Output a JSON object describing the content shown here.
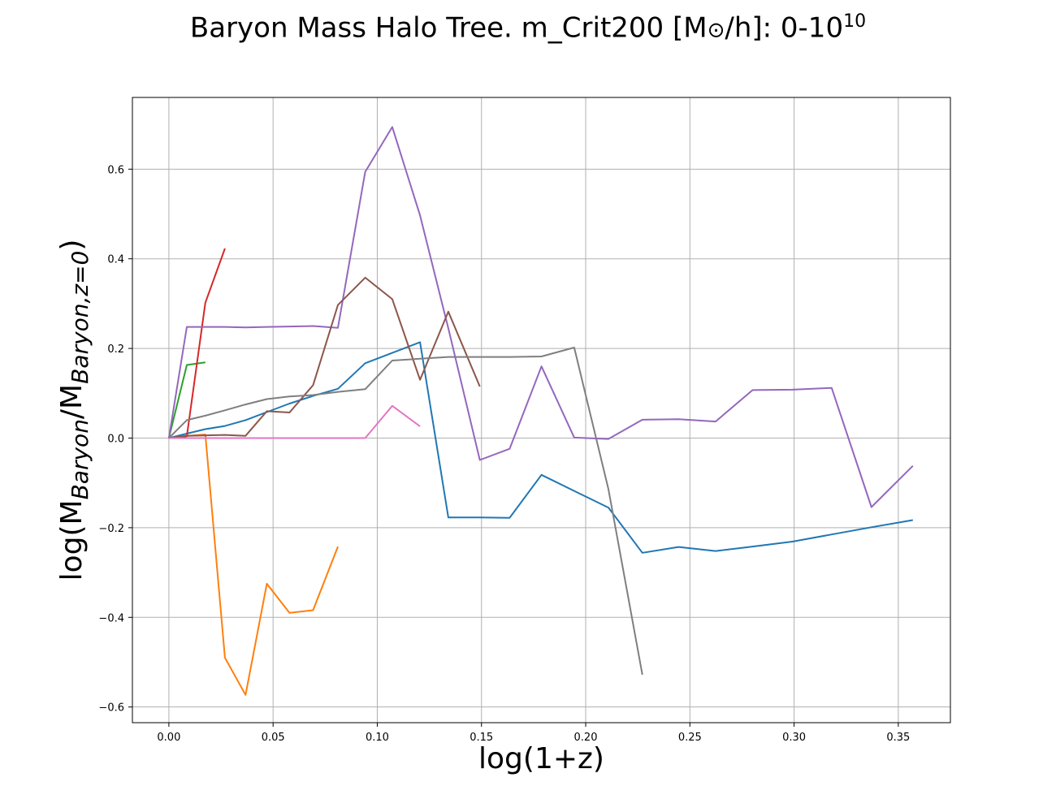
{
  "chart_data": {
    "type": "line",
    "title": {
      "main": "Baryon Mass Halo Tree. m_Crit200 [M",
      "sun": "⊙",
      "unit_tail": "/h]: 0-10",
      "exponent": "10"
    },
    "xlabel": "log(1+z)",
    "ylabel": {
      "prefix": "log(M",
      "sub1": "Baryon",
      "mid": "/M",
      "sub2": "Baryon,z=0",
      "suffix": ")"
    },
    "xlim": [
      -0.0175,
      0.375
    ],
    "ylim": [
      -0.635,
      0.76
    ],
    "xticks": [
      0.0,
      0.05,
      0.1,
      0.15,
      0.2,
      0.25,
      0.3,
      0.35
    ],
    "xtick_labels": [
      "0.00",
      "0.05",
      "0.10",
      "0.15",
      "0.20",
      "0.25",
      "0.30",
      "0.35"
    ],
    "yticks": [
      -0.6,
      -0.4,
      -0.2,
      0.0,
      0.2,
      0.4,
      0.6
    ],
    "ytick_labels": [
      "−0.6",
      "−0.4",
      "−0.2",
      "0.0",
      "0.2",
      "0.4",
      "0.6"
    ],
    "grid": true,
    "legend": "none",
    "series": [
      {
        "color": "#1f77b4",
        "x": [
          0.0,
          0.0086,
          0.0175,
          0.0269,
          0.0368,
          0.047,
          0.0579,
          0.0692,
          0.0811,
          0.0942,
          0.1072,
          0.1205,
          0.1341,
          0.1492,
          0.1635,
          0.1788,
          0.1945,
          0.2109,
          0.2272,
          0.2446,
          0.2623,
          0.2801,
          0.2992,
          0.318,
          0.3371,
          0.357
        ],
        "y": [
          0.0,
          0.01,
          0.02,
          0.027,
          0.04,
          0.058,
          0.077,
          0.094,
          0.11,
          0.167,
          0.19,
          0.214,
          -0.177,
          -0.177,
          -0.178,
          -0.082,
          -0.118,
          -0.155,
          -0.256,
          -0.243,
          -0.252,
          -0.242,
          -0.231,
          -0.215,
          -0.199,
          -0.183
        ]
      },
      {
        "color": "#ff7f0e",
        "x": [
          0.0,
          0.0086,
          0.0175,
          0.0269,
          0.0368,
          0.047,
          0.0579,
          0.0692,
          0.0811
        ],
        "y": [
          0.0,
          0.005,
          0.008,
          -0.49,
          -0.573,
          -0.325,
          -0.39,
          -0.384,
          -0.242
        ]
      },
      {
        "color": "#2ca02c",
        "x": [
          0.0,
          0.0086,
          0.0175
        ],
        "y": [
          0.0,
          0.163,
          0.169
        ]
      },
      {
        "color": "#d62728",
        "x": [
          0.0,
          0.0086,
          0.0175,
          0.0269
        ],
        "y": [
          0.0,
          0.004,
          0.302,
          0.423
        ]
      },
      {
        "color": "#9467bd",
        "x": [
          0.0,
          0.0086,
          0.0175,
          0.0269,
          0.0368,
          0.047,
          0.0579,
          0.0692,
          0.0811,
          0.0942,
          0.1072,
          0.1205,
          0.1341,
          0.1492,
          0.1635,
          0.1788,
          0.1945,
          0.2109,
          0.2272,
          0.2446,
          0.2623,
          0.2801,
          0.2992,
          0.318,
          0.3371,
          0.357
        ],
        "y": [
          0.0,
          0.248,
          0.248,
          0.248,
          0.247,
          0.248,
          0.249,
          0.25,
          0.246,
          0.594,
          0.694,
          0.497,
          0.245,
          -0.049,
          -0.024,
          0.16,
          0.001,
          -0.002,
          0.041,
          0.042,
          0.037,
          0.107,
          0.108,
          0.112,
          -0.154,
          -0.062
        ]
      },
      {
        "color": "#8c564b",
        "x": [
          0.0,
          0.0086,
          0.0175,
          0.0269,
          0.0368,
          0.047,
          0.0579,
          0.0692,
          0.0811,
          0.0942,
          0.1072,
          0.1205,
          0.1341,
          0.1492
        ],
        "y": [
          0.0,
          0.005,
          0.006,
          0.007,
          0.005,
          0.06,
          0.057,
          0.118,
          0.297,
          0.358,
          0.31,
          0.13,
          0.282,
          0.115
        ]
      },
      {
        "color": "#e377c2",
        "x": [
          0.0,
          0.0086,
          0.0175,
          0.0269,
          0.0368,
          0.047,
          0.0579,
          0.0692,
          0.0811,
          0.0942,
          0.1072,
          0.1205
        ],
        "y": [
          0.0,
          0.0,
          0.0,
          0.0,
          0.0,
          0.0,
          0.0,
          0.0,
          0.0,
          0.0,
          0.072,
          0.026
        ]
      },
      {
        "color": "#7f7f7f",
        "x": [
          0.0,
          0.0086,
          0.0175,
          0.0269,
          0.0368,
          0.047,
          0.0579,
          0.0692,
          0.0811,
          0.0942,
          0.1072,
          0.1205,
          0.1341,
          0.1492,
          0.1635,
          0.1788,
          0.1945,
          0.2109,
          0.2272
        ],
        "y": [
          0.0,
          0.04,
          0.05,
          0.062,
          0.075,
          0.087,
          0.093,
          0.096,
          0.103,
          0.109,
          0.173,
          0.177,
          0.181,
          0.181,
          0.181,
          0.182,
          0.202,
          -0.114,
          -0.528
        ]
      }
    ]
  }
}
